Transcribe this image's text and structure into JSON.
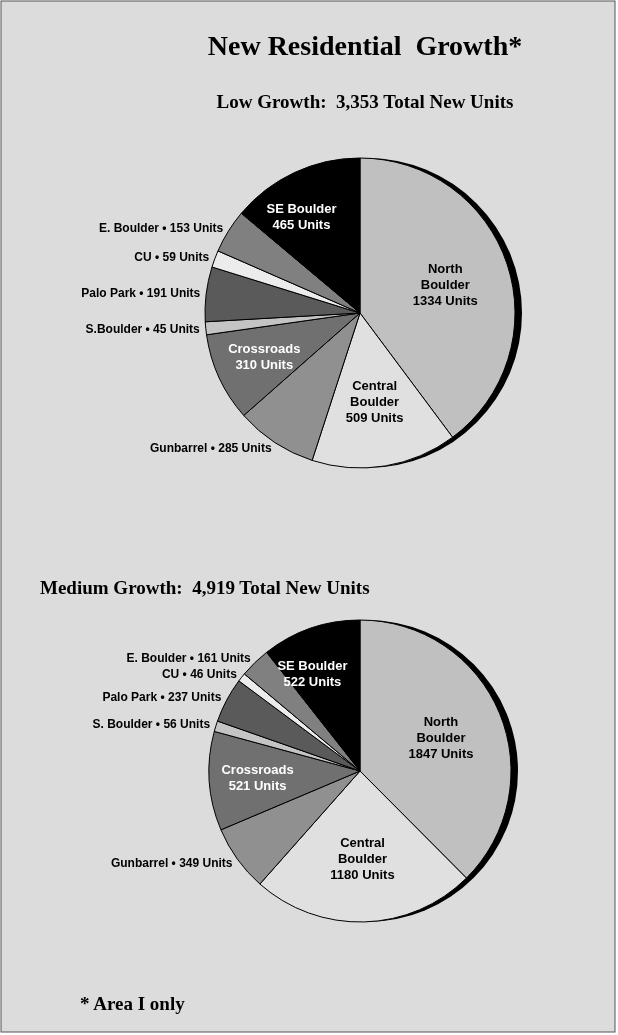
{
  "chart_data": [
    {
      "type": "pie",
      "title": "New Residential  Growth*",
      "subtitle": "Low Growth:  3,353 Total New Units",
      "categories": [
        "North Boulder",
        "Central Boulder",
        "Gunbarrel",
        "Crossroads",
        "S.Boulder",
        "Palo Park",
        "CU",
        "E. Boulder",
        "SE Boulder"
      ],
      "values": [
        1334,
        509,
        285,
        310,
        45,
        191,
        59,
        153,
        465
      ],
      "value_labels": [
        "1334 Units",
        "509 Units",
        "• 285 Units",
        "310 Units",
        "• 45 Units",
        "• 191 Units",
        "• 59 Units",
        "• 153 Units",
        "465 Units"
      ],
      "colors": [
        "#c0c0c0",
        "#e0e0e0",
        "#909090",
        "#707070",
        "#c4c4c4",
        "#5a5a5a",
        "#ececec",
        "#808080",
        "#000000"
      ]
    },
    {
      "type": "pie",
      "title": "Medium Growth:  4,919 Total New Units",
      "categories": [
        "North Boulder",
        "Central Boulder",
        "Gunbarrel",
        "Crossroads",
        "S. Boulder",
        "Palo Park",
        "CU",
        "E. Boulder",
        "SE Boulder"
      ],
      "values": [
        1847,
        1180,
        349,
        521,
        56,
        237,
        46,
        161,
        522
      ],
      "value_labels": [
        "1847 Units",
        "1180 Units",
        "• 349 Units",
        "521 Units",
        "• 56 Units",
        "• 237 Units",
        "• 46 Units",
        "• 161 Units",
        "522 Units"
      ],
      "colors": [
        "#c0c0c0",
        "#e0e0e0",
        "#909090",
        "#707070",
        "#c4c4c4",
        "#5a5a5a",
        "#ececec",
        "#808080",
        "#000000"
      ],
      "annotations": [
        "* Area I only"
      ]
    }
  ]
}
